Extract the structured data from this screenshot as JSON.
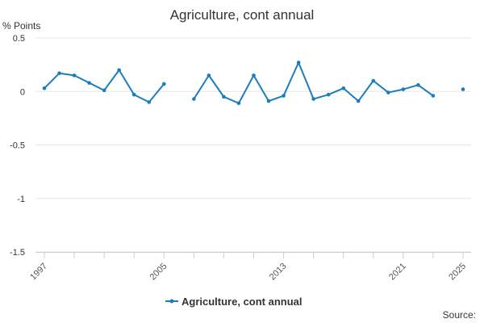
{
  "chart_data": {
    "type": "line",
    "title": "Agriculture, cont annual",
    "ylabel": "% Points",
    "xlabel": "",
    "ylim": [
      -1.5,
      0.5
    ],
    "yticks": [
      0.5,
      0,
      -0.5,
      -1,
      -1.5
    ],
    "yticks_labels": [
      "0.5",
      "0",
      "-0.5",
      "-1",
      "-1.5"
    ],
    "xlim": [
      1997,
      2025
    ],
    "xticks": [
      1997,
      2005,
      2013,
      2021,
      2025
    ],
    "xticks_labels": [
      "1997",
      "2005",
      "2013",
      "2021",
      "2025"
    ],
    "grid": true,
    "legend_position": "bottom",
    "color": "#1a7dbd",
    "series": [
      {
        "name": "Agriculture, cont annual",
        "x": [
          1997,
          1998,
          1999,
          2000,
          2001,
          2002,
          2003,
          2004,
          2005,
          2006,
          2007,
          2008,
          2009,
          2010,
          2011,
          2012,
          2013,
          2014,
          2015,
          2016,
          2017,
          2018,
          2019,
          2020,
          2021,
          2022,
          2023,
          2024,
          2025
        ],
        "y": [
          0.03,
          0.17,
          0.15,
          0.08,
          0.01,
          0.2,
          -0.03,
          -0.1,
          0.07,
          null,
          -0.07,
          0.15,
          -0.05,
          -0.11,
          0.15,
          -0.09,
          -0.04,
          0.27,
          -0.07,
          -0.03,
          0.03,
          -0.09,
          0.1,
          -0.01,
          0.02,
          0.06,
          -0.04,
          null,
          0.02
        ]
      }
    ],
    "source_label": "Source:"
  }
}
